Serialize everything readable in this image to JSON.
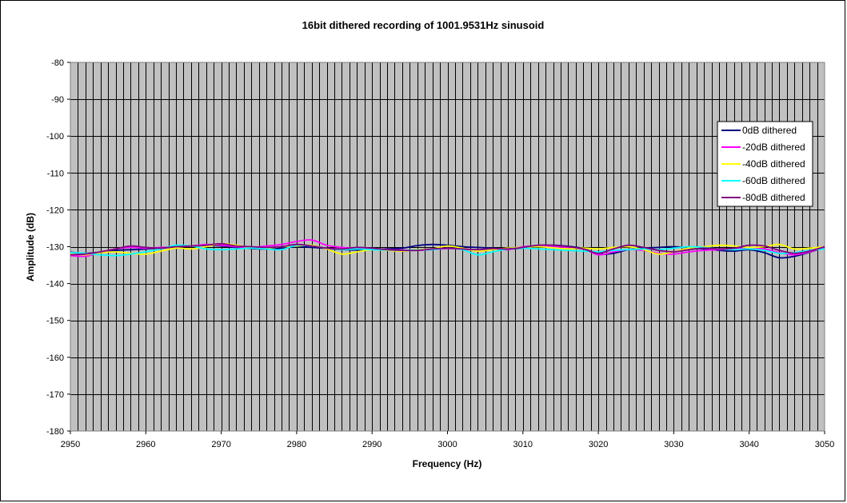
{
  "chart_data": {
    "type": "line",
    "title": "16bit dithered recording of 1001.9531Hz sinusoid",
    "xlabel": "Frequency (Hz)",
    "ylabel": "Amplitude (dB)",
    "xlim": [
      2950,
      3050
    ],
    "ylim": [
      -180,
      -80
    ],
    "x_ticks": [
      2950,
      2960,
      2970,
      2980,
      2990,
      3000,
      3010,
      3020,
      3030,
      3040,
      3050
    ],
    "y_ticks": [
      -80,
      -90,
      -100,
      -110,
      -120,
      -130,
      -140,
      -150,
      -160,
      -170,
      -180
    ],
    "x_tick_labels": [
      "2950",
      "2960",
      "2970",
      "2980",
      "2990",
      "3000",
      "3010",
      "3020",
      "3030",
      "3040",
      "3050"
    ],
    "y_tick_labels": [
      "-80",
      "-90",
      "-100",
      "-110",
      "-120",
      "-130",
      "-140",
      "-150",
      "-160",
      "-170",
      "-180"
    ],
    "grid": true,
    "plot_background": "#c0c0c0",
    "legend_position": "right",
    "x": [
      2950,
      2952,
      2954,
      2956,
      2958,
      2960,
      2962,
      2964,
      2966,
      2968,
      2970,
      2972,
      2974,
      2976,
      2978,
      2980,
      2982,
      2984,
      2986,
      2988,
      2990,
      2992,
      2994,
      2996,
      2998,
      3000,
      3002,
      3004,
      3006,
      3008,
      3010,
      3012,
      3014,
      3016,
      3018,
      3020,
      3022,
      3024,
      3026,
      3028,
      3030,
      3032,
      3034,
      3036,
      3038,
      3040,
      3042,
      3044,
      3046,
      3048,
      3050
    ],
    "series": [
      {
        "name": "0dB dithered",
        "color": "#000080",
        "values": [
          -131.5,
          -131.8,
          -131.5,
          -131.0,
          -130.8,
          -130.6,
          -130.3,
          -130.0,
          -129.8,
          -129.6,
          -129.8,
          -130.2,
          -130.5,
          -130.6,
          -130.4,
          -130.0,
          -130.2,
          -130.5,
          -130.8,
          -130.9,
          -130.8,
          -130.6,
          -130.4,
          -129.7,
          -129.4,
          -129.6,
          -130.0,
          -130.2,
          -130.4,
          -130.6,
          -130.4,
          -130.0,
          -129.6,
          -129.9,
          -130.5,
          -132.0,
          -131.8,
          -130.8,
          -130.4,
          -130.2,
          -130.0,
          -130.3,
          -130.6,
          -131.0,
          -131.2,
          -130.8,
          -131.6,
          -133.0,
          -132.6,
          -131.5,
          -130.2
        ]
      },
      {
        "name": "-20dB dithered",
        "color": "#ff00ff",
        "values": [
          -132.4,
          -132.6,
          -131.5,
          -130.6,
          -130.2,
          -130.4,
          -130.2,
          -130.0,
          -129.8,
          -129.4,
          -129.6,
          -130.0,
          -130.2,
          -129.8,
          -129.4,
          -128.6,
          -128.2,
          -129.6,
          -130.2,
          -130.4,
          -130.6,
          -130.8,
          -130.9,
          -131.0,
          -130.8,
          -130.5,
          -130.7,
          -130.9,
          -130.6,
          -130.8,
          -130.0,
          -129.8,
          -130.0,
          -130.2,
          -130.6,
          -132.2,
          -131.4,
          -130.8,
          -131.0,
          -131.8,
          -132.0,
          -131.4,
          -131.0,
          -130.8,
          -130.6,
          -130.4,
          -130.6,
          -131.6,
          -132.2,
          -131.4,
          -130.2
        ]
      },
      {
        "name": "-40dB dithered",
        "color": "#ffff00",
        "values": [
          -132.0,
          -132.2,
          -131.6,
          -131.4,
          -131.8,
          -132.0,
          -131.2,
          -130.4,
          -130.6,
          -130.0,
          -129.2,
          -129.6,
          -130.2,
          -130.4,
          -130.0,
          -129.8,
          -129.6,
          -130.6,
          -132.0,
          -131.4,
          -130.8,
          -131.0,
          -131.2,
          -130.8,
          -130.6,
          -129.8,
          -130.4,
          -131.2,
          -130.8,
          -130.4,
          -130.2,
          -130.0,
          -130.3,
          -130.6,
          -130.4,
          -130.6,
          -130.2,
          -130.0,
          -130.8,
          -132.0,
          -131.4,
          -130.4,
          -130.0,
          -129.6,
          -129.8,
          -130.2,
          -130.0,
          -129.4,
          -130.6,
          -130.4,
          -130.0
        ]
      },
      {
        "name": "-60dB dithered",
        "color": "#00ffff",
        "values": [
          -131.6,
          -131.8,
          -132.2,
          -132.4,
          -132.0,
          -131.4,
          -130.6,
          -129.6,
          -129.8,
          -130.6,
          -130.8,
          -130.6,
          -130.4,
          -130.6,
          -130.8,
          -129.6,
          -129.8,
          -130.4,
          -130.8,
          -130.6,
          -130.8,
          -130.9,
          -131.0,
          -130.9,
          -130.8,
          -130.4,
          -130.8,
          -132.2,
          -131.4,
          -130.6,
          -130.4,
          -130.6,
          -130.8,
          -131.0,
          -131.2,
          -131.4,
          -131.0,
          -130.8,
          -130.6,
          -130.8,
          -130.4,
          -130.0,
          -130.2,
          -130.6,
          -130.8,
          -130.6,
          -131.0,
          -131.8,
          -131.6,
          -131.0,
          -130.6
        ]
      },
      {
        "name": "-80dB dithered",
        "color": "#800080",
        "values": [
          -132.2,
          -132.0,
          -131.4,
          -130.6,
          -129.8,
          -130.2,
          -130.4,
          -130.0,
          -129.8,
          -129.6,
          -129.2,
          -129.8,
          -130.0,
          -130.2,
          -130.0,
          -129.4,
          -129.8,
          -130.4,
          -130.6,
          -130.2,
          -130.4,
          -130.8,
          -131.0,
          -131.0,
          -130.6,
          -130.4,
          -130.6,
          -130.8,
          -130.5,
          -130.6,
          -130.2,
          -129.6,
          -129.6,
          -130.0,
          -130.6,
          -131.8,
          -130.6,
          -129.6,
          -130.2,
          -131.0,
          -131.4,
          -130.8,
          -130.4,
          -130.6,
          -130.4,
          -129.6,
          -129.8,
          -131.0,
          -131.8,
          -131.2,
          -130.0
        ]
      }
    ]
  }
}
